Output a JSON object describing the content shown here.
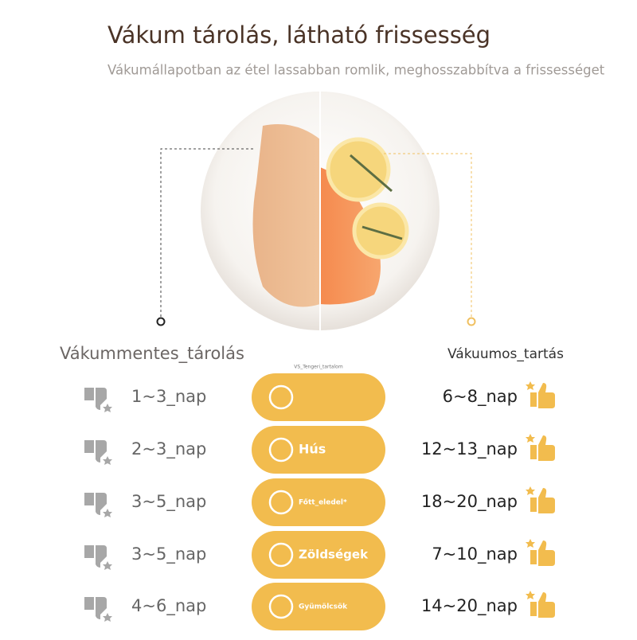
{
  "header": {
    "title": "Vákum tárolás, látható frissesség",
    "subtitle": "Vákumállapotban az étel lassabban romlik, meghosszabbítva a frissességet"
  },
  "comparison": {
    "left_label": "Vákummentes_tárolás",
    "right_label": "Vákuumos_tartás",
    "center_note": "VS_Tengeri_tartalom",
    "rows": [
      {
        "left": "1~3_nap",
        "right": "6~8_nap"
      },
      {
        "left": "2~3_nap",
        "category": "Hús",
        "right": "12~13_nap"
      },
      {
        "left": "3~5_nap",
        "category": "Főtt_eledel*",
        "right": "18~20_nap"
      },
      {
        "left": "3~5_nap",
        "category": "Zöldségek",
        "right": "7~10_nap"
      },
      {
        "left": "4~6_nap",
        "category": "Gyümölcsök",
        "right": "14~20_nap"
      }
    ]
  }
}
